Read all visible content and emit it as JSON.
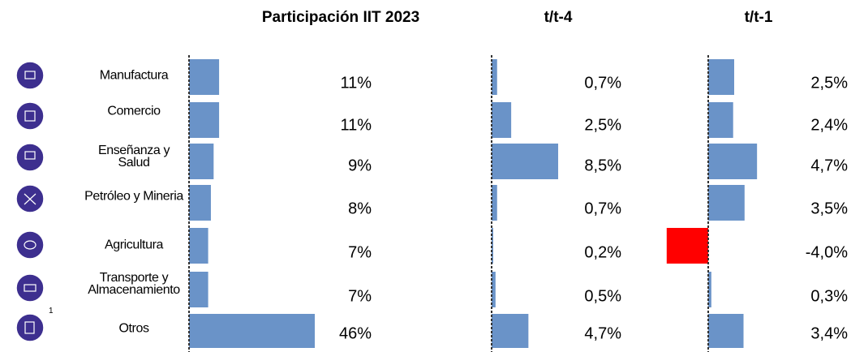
{
  "footnote_marker": "1",
  "chart_data": [
    {
      "type": "bar",
      "title": "Participación IIT  2023",
      "categories": [
        "Manufactura",
        "Comercio",
        "Enseñanza y\nSalud",
        "Petróleo y Mineria",
        "Agricultura",
        "Transporte y\nAlmacenamiento",
        "Otros"
      ],
      "values": [
        11,
        11,
        9,
        8,
        7,
        7,
        46
      ],
      "value_labels": [
        "11%",
        "11%",
        "9%",
        "8%",
        "7%",
        "7%",
        "46%"
      ],
      "color": "#6a93c8"
    },
    {
      "type": "bar",
      "title": "t/t-4",
      "values": [
        0.7,
        2.5,
        8.5,
        0.7,
        0.2,
        0.5,
        4.7
      ],
      "value_labels": [
        "0,7%",
        "2,5%",
        "8,5%",
        "0,7%",
        "0,2%",
        "0,5%",
        "4,7%"
      ],
      "color": "#6a93c8"
    },
    {
      "type": "bar",
      "title": "t/t-1",
      "values": [
        2.5,
        2.4,
        4.7,
        3.5,
        -4.0,
        0.3,
        3.4
      ],
      "value_labels": [
        "2,5%",
        "2,4%",
        "4,7%",
        "3,5%",
        "-4,0%",
        "0,3%",
        "3,4%"
      ],
      "color": "#6a93c8",
      "negative_color": "#ff0000"
    }
  ]
}
